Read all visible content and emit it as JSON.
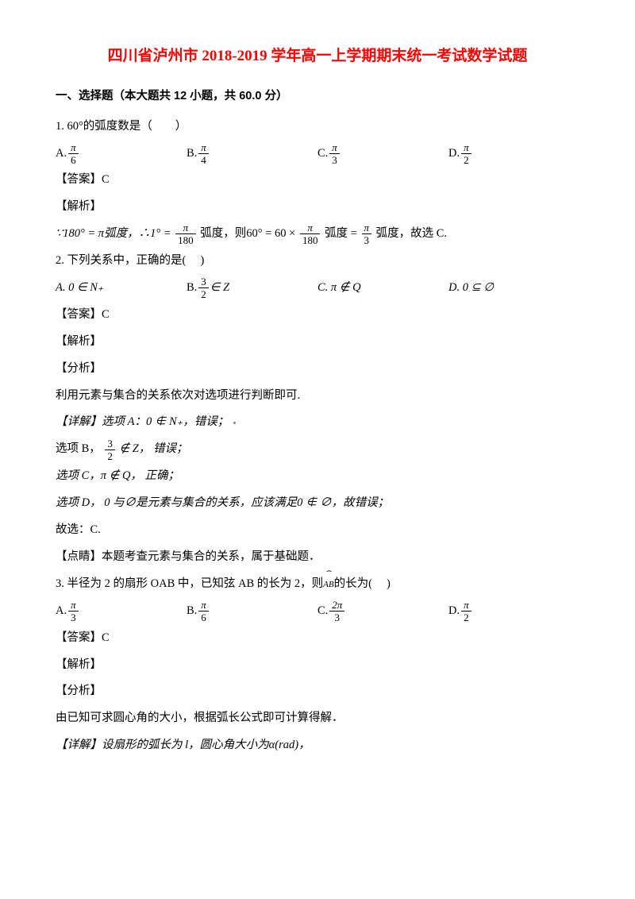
{
  "title": "四川省泸州市 2018-2019 学年高一上学期期末统一考试数学试题",
  "section1_head": "一、选择题（本大题共 12 小题，共 60.0 分）",
  "q1": {
    "stem": "1. 60°的弧度数是（　　）",
    "A_prefix": "A. ",
    "B_prefix": "B. ",
    "C_prefix": "C. ",
    "D_prefix": "D. ",
    "A_num": "π",
    "A_den": "6",
    "B_num": "π",
    "B_den": "4",
    "C_num": "π",
    "C_den": "3",
    "D_num": "π",
    "D_den": "2",
    "answer": "【答案】C",
    "jiexi": "【解析】",
    "sol_p1": "∵180° = π弧度，∴1° = ",
    "sol_f1_num": "π",
    "sol_f1_den": "180",
    "sol_p2": "弧度，则60° = 60 × ",
    "sol_f2_num": "π",
    "sol_f2_den": "180",
    "sol_p3": "弧度 = ",
    "sol_f3_num": "π",
    "sol_f3_den": "3",
    "sol_p4": "弧度，故选 C."
  },
  "q2": {
    "stem": "2. 下列关系中，正确的是(　  )",
    "A": "A.  0 ∈ N₊",
    "B_prefix": "B.  ",
    "B_num": "3",
    "B_den": "2",
    "B_suffix": " ∈ Z",
    "C": "C.  π ∉ Q",
    "D": "D.  0 ⊆ ∅",
    "answer": "【答案】C",
    "jiexi": "【解析】",
    "fenxi": "【分析】",
    "ana": "利用元素与集合的关系依次对选项进行判断即可.",
    "det_label": "【详解】选项 A：0 ∉ N₊，错误；",
    "optB_p1": "选项 B，",
    "optB_num": "3",
    "optB_den": "2",
    "optB_p2": "∉ Z， 错误；",
    "optC": "选项 C，π ∉ Q， 正确；",
    "optD": "选项 D， 0 与∅是元素与集合的关系，应该满足0 ∉ ∅，故错误；",
    "guxuan": "故选：C.",
    "dianjing": "【点睛】本题考查元素与集合的关系，属于基础题．"
  },
  "q3": {
    "stem_p1": "3. 半径为 2 的扇形 OAB 中，已知弦 AB 的长为 2，则",
    "stem_arc": "AB",
    "stem_p2": "的长为(　  )",
    "A_prefix": "A. ",
    "A_num": "π",
    "A_den": "3",
    "B_prefix": "B. ",
    "B_num": "π",
    "B_den": "6",
    "C_prefix": "C. ",
    "C_num": "2π",
    "C_den": "3",
    "D_prefix": "D. ",
    "D_num": "π",
    "D_den": "2",
    "answer": "【答案】C",
    "jiexi": "【解析】",
    "fenxi": "【分析】",
    "ana": "由已知可求圆心角的大小，根据弧长公式即可计算得解．",
    "det": "【详解】设扇形的弧长为 l，圆心角大小为α(rad)，"
  }
}
